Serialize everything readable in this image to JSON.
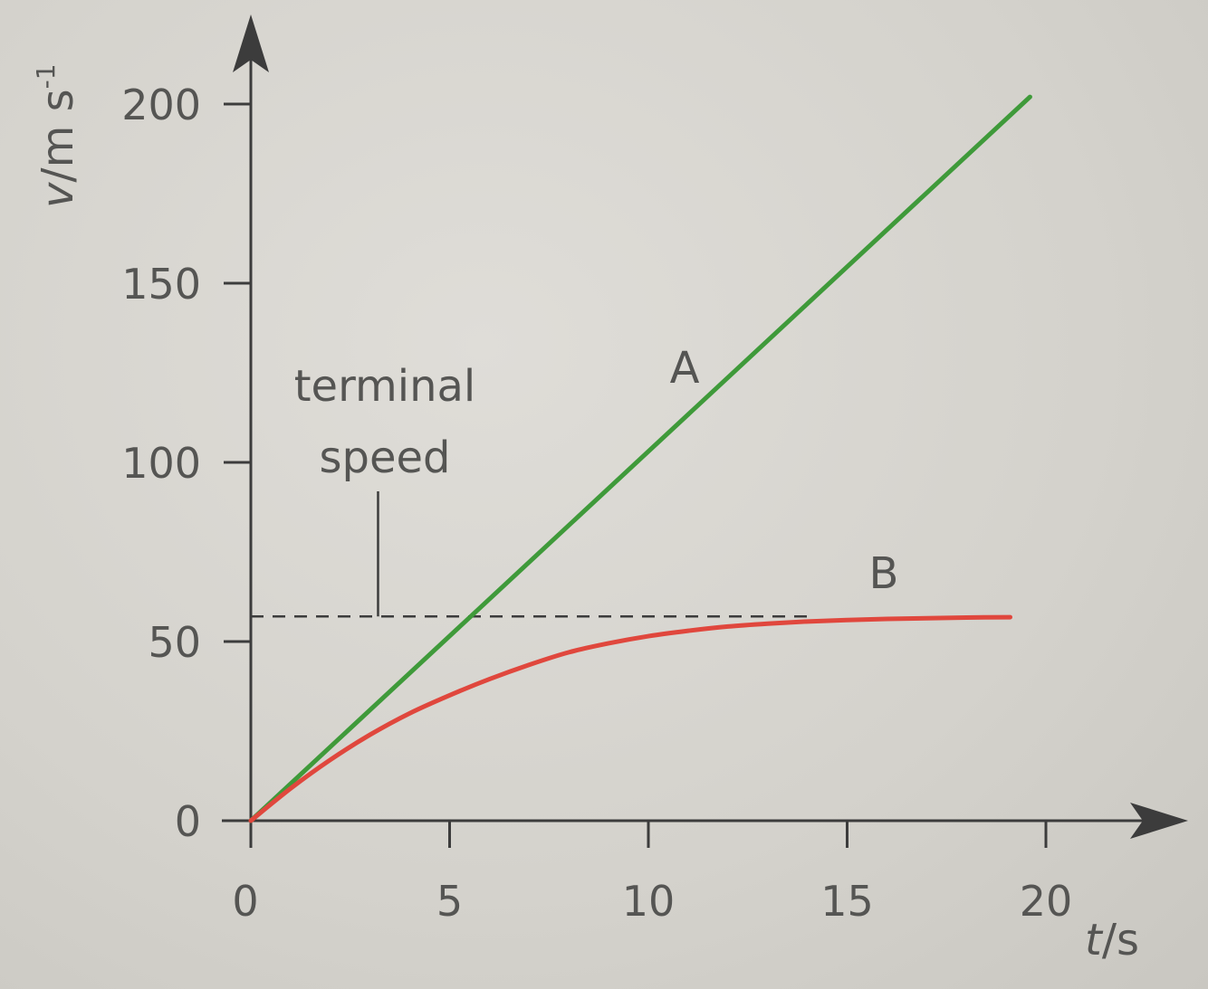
{
  "chart_data": {
    "type": "line",
    "title": "",
    "xlabel": "t/s",
    "xlabel_parts": {
      "symbol": "t",
      "unit": "/s"
    },
    "ylabel": "v/m s⁻¹",
    "ylabel_parts": {
      "symbol": "v",
      "unit": "/m s",
      "sup": "-1"
    },
    "xlim": [
      0,
      20
    ],
    "ylim": [
      0,
      200
    ],
    "x_ticks": [
      0,
      5,
      10,
      15,
      20
    ],
    "x_tick_labels": [
      "0",
      "5",
      "10",
      "15",
      "20"
    ],
    "y_ticks": [
      0,
      50,
      100,
      150,
      200
    ],
    "y_tick_labels": [
      "0",
      "50",
      "100",
      "150",
      "200"
    ],
    "grid": false,
    "legend": "none",
    "series": [
      {
        "name": "A",
        "color": "#3f9a3a",
        "x": [
          0,
          19.6
        ],
        "y": [
          0,
          202
        ]
      },
      {
        "name": "B",
        "color": "#e0473d",
        "x": [
          0,
          1,
          2,
          3,
          4,
          5,
          6,
          7,
          8,
          9,
          10,
          11,
          12,
          13,
          14,
          15,
          16,
          17,
          18,
          19.1
        ],
        "y": [
          0,
          9,
          17,
          24,
          30,
          35,
          39.5,
          43.5,
          47,
          49.5,
          51.5,
          53,
          54.2,
          55,
          55.6,
          56,
          56.3,
          56.5,
          56.7,
          56.8
        ]
      }
    ],
    "annotations": [
      {
        "text_lines": [
          "terminal",
          "speed"
        ],
        "value": 57,
        "kind": "dashed-horizontal-line",
        "from_x": 0,
        "to_x": 14.2,
        "pointer_x": 3.2
      }
    ]
  }
}
